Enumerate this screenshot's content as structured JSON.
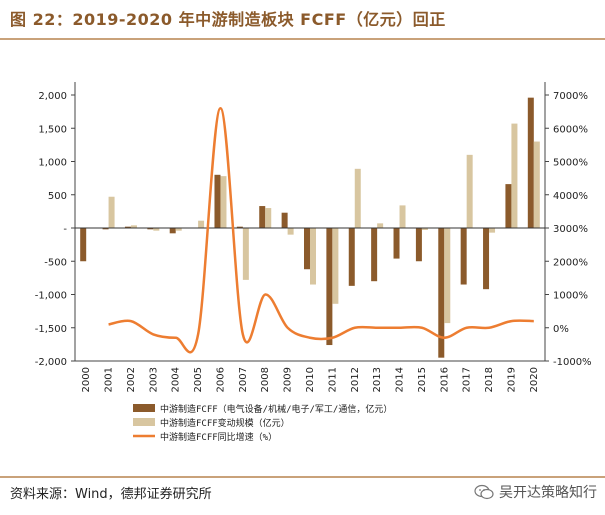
{
  "figure_title": "图 22：2019-2020 年中游制造板块 FCFF（亿元）回正",
  "source_note": "资料来源：Wind，德邦证券研究所",
  "watermark": "吴开达策略知行",
  "colors": {
    "fcff": "#8B5A2B",
    "change": "#D8C6A0",
    "growth": "#ED7D31",
    "title": "#8B5A2B",
    "rule": "#C9A27A"
  },
  "chart_data": {
    "type": "bar",
    "categories": [
      "2000",
      "2001",
      "2002",
      "2003",
      "2004",
      "2005",
      "2006",
      "2007",
      "2008",
      "2009",
      "2010",
      "2011",
      "2012",
      "2013",
      "2014",
      "2015",
      "2016",
      "2017",
      "2018",
      "2019",
      "2020"
    ],
    "series": [
      {
        "name": "中游制造FCFF（电气设备/机械/电子/军工/通信，亿元）",
        "type": "bar",
        "axis": "left",
        "values": [
          -500,
          -20,
          20,
          -20,
          -80,
          0,
          800,
          20,
          330,
          230,
          -620,
          -1760,
          -870,
          -800,
          -460,
          -500,
          -1950,
          -850,
          -920,
          660,
          1960
        ]
      },
      {
        "name": "中游制造FCFF变动规模（亿元）",
        "type": "bar",
        "axis": "left",
        "values": [
          0,
          470,
          40,
          -40,
          -40,
          110,
          780,
          -780,
          300,
          -100,
          -850,
          -1140,
          890,
          70,
          340,
          -30,
          -1430,
          1100,
          -70,
          1570,
          1300
        ]
      },
      {
        "name": "中游制造FCFF同比增速（%）",
        "type": "line",
        "axis": "right",
        "values": [
          null,
          100,
          200,
          -200,
          -300,
          -200,
          6600,
          -200,
          1000,
          0,
          -300,
          -300,
          0,
          0,
          0,
          0,
          -300,
          0,
          0,
          200,
          200
        ]
      }
    ],
    "legend": [
      "中游制造FCFF（电气设备/机械/电子/军工/通信，亿元）",
      "中游制造FCFF变动规模（亿元）",
      "中游制造FCFF同比增速（%）"
    ],
    "left_axis": {
      "ylim": [
        -2000,
        2000
      ],
      "ticks": [
        2000,
        1500,
        1000,
        500,
        0,
        -500,
        -1000,
        -1500,
        -2000
      ],
      "tick_labels": [
        "2,000",
        "1,500",
        "1,000",
        "500",
        "-",
        "-500",
        "-1,000",
        "-1,500",
        "-2,000"
      ]
    },
    "right_axis": {
      "ylim": [
        -1000,
        7000
      ],
      "ticks": [
        7000,
        6000,
        5000,
        4000,
        3000,
        2000,
        1000,
        0,
        -1000
      ],
      "tick_labels": [
        "7000%",
        "6000%",
        "5000%",
        "4000%",
        "3000%",
        "2000%",
        "1000%",
        "0%",
        "-1000%"
      ]
    },
    "legend_position": "bottom",
    "grid": false
  }
}
